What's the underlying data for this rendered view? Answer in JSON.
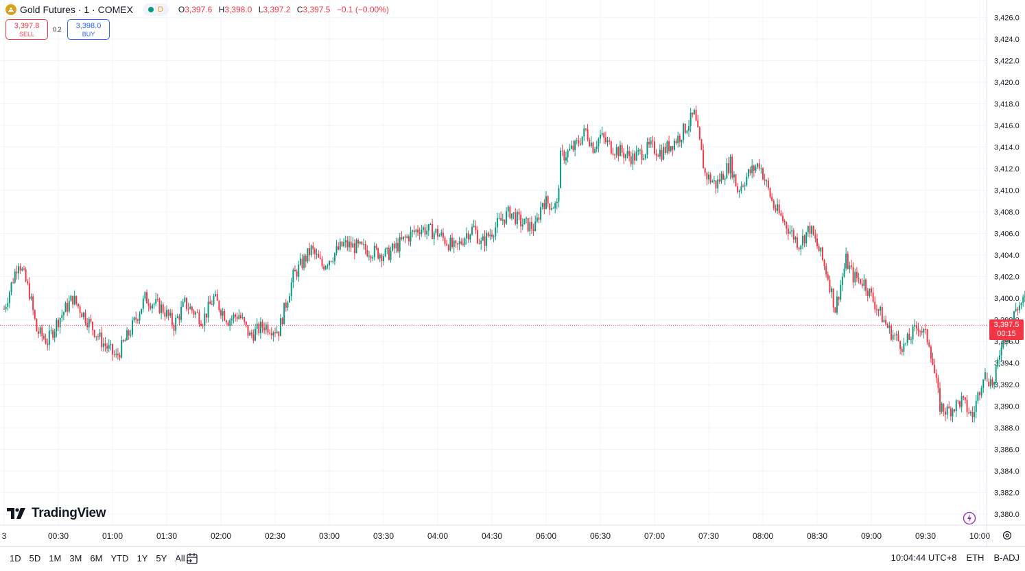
{
  "header": {
    "symbol": "Gold Futures · 1 · COMEX",
    "interval_badge": "D",
    "ohlc": [
      {
        "k": "O",
        "v": "3,397.6"
      },
      {
        "k": "H",
        "v": "3,398.0"
      },
      {
        "k": "L",
        "v": "3,397.2"
      },
      {
        "k": "C",
        "v": "3,397.5"
      }
    ],
    "change": "−0.1 (−0.00%)"
  },
  "trade": {
    "sell_price": "3,397.8",
    "sell_label": "SELL",
    "spread": "0.2",
    "buy_price": "3,398.0",
    "buy_label": "BUY"
  },
  "logo_text": "TradingView",
  "last_price": {
    "value": "3,397.5",
    "countdown": "00:15"
  },
  "colors": {
    "up": "#089981",
    "down": "#f23645",
    "grid": "#f0f3fa",
    "axis_text": "#131722"
  },
  "bottom": {
    "ranges": [
      "1D",
      "5D",
      "1M",
      "3M",
      "6M",
      "YTD",
      "1Y",
      "5Y",
      "All"
    ],
    "clock": "10:04:44 UTC+8",
    "session": "ETH",
    "adjust": "B-ADJ"
  },
  "chart_data": {
    "type": "candlestick",
    "title": "",
    "xlabel": "",
    "ylabel": "",
    "ylim": [
      3379,
      3427
    ],
    "y_ticks": [
      "3,380.0",
      "3,382.0",
      "3,384.0",
      "3,386.0",
      "3,388.0",
      "3,390.0",
      "3,392.0",
      "3,394.0",
      "3,396.0",
      "3,398.0",
      "3,400.0",
      "3,402.0",
      "3,404.0",
      "3,406.0",
      "3,408.0",
      "3,410.0",
      "3,412.0",
      "3,414.0",
      "3,416.0",
      "3,418.0",
      "3,420.0",
      "3,422.0",
      "3,424.0",
      "3,426.0"
    ],
    "x_ticks": [
      "3",
      "00:30",
      "01:00",
      "01:30",
      "02:00",
      "02:30",
      "03:00",
      "03:30",
      "04:00",
      "04:30",
      "06:00",
      "06:30",
      "07:00",
      "07:30",
      "08:00",
      "08:30",
      "09:00",
      "09:30",
      "10:00"
    ],
    "grid": true,
    "close_path": {
      "x_minutes": [
        0,
        8,
        14,
        18,
        24,
        30,
        38,
        46,
        54,
        62,
        70,
        78,
        88,
        94,
        100,
        110,
        116,
        124,
        130,
        136,
        144,
        152,
        160,
        170,
        176,
        188,
        200,
        212,
        222,
        230,
        240,
        250,
        256,
        260,
        264,
        274,
        280,
        286,
        294,
        298,
        306,
        308,
        316,
        322,
        326,
        330,
        336,
        342,
        348,
        358,
        364,
        374,
        382,
        388,
        394,
        402,
        406,
        412,
        418,
        426,
        432,
        440,
        446,
        452,
        456,
        460,
        466,
        470,
        476,
        482,
        490,
        498,
        506,
        512,
        518,
        522,
        530,
        536,
        542,
        548,
        552,
        556,
        560,
        566,
        568,
        572
      ],
      "close": [
        3399.0,
        3403.5,
        3400.5,
        3397.0,
        3396.0,
        3398.0,
        3400.0,
        3398.0,
        3396.0,
        3394.5,
        3397.0,
        3400.0,
        3399.0,
        3397.5,
        3399.5,
        3398.0,
        3400.0,
        3398.0,
        3398.5,
        3396.5,
        3397.5,
        3397.0,
        3402.0,
        3404.5,
        3403.0,
        3405.0,
        3404.5,
        3404.0,
        3405.5,
        3406.5,
        3406.0,
        3404.5,
        3406.0,
        3406.5,
        3405.0,
        3407.0,
        3408.0,
        3407.0,
        3406.5,
        3409.0,
        3408.5,
        3413.0,
        3414.0,
        3415.5,
        3414.0,
        3415.0,
        3414.0,
        3413.5,
        3413.0,
        3414.0,
        3413.5,
        3415.0,
        3417.0,
        3411.5,
        3410.5,
        3412.5,
        3410.0,
        3411.5,
        3412.5,
        3408.5,
        3407.0,
        3405.0,
        3406.5,
        3404.0,
        3402.0,
        3399.0,
        3403.5,
        3402.0,
        3401.5,
        3399.5,
        3397.0,
        3395.5,
        3397.5,
        3396.0,
        3390.0,
        3389.5,
        3390.5,
        3389.0,
        3393.0,
        3392.0,
        3396.0,
        3397.0,
        3399.0,
        3400.0,
        3399.5,
        3397.5
      ]
    }
  }
}
